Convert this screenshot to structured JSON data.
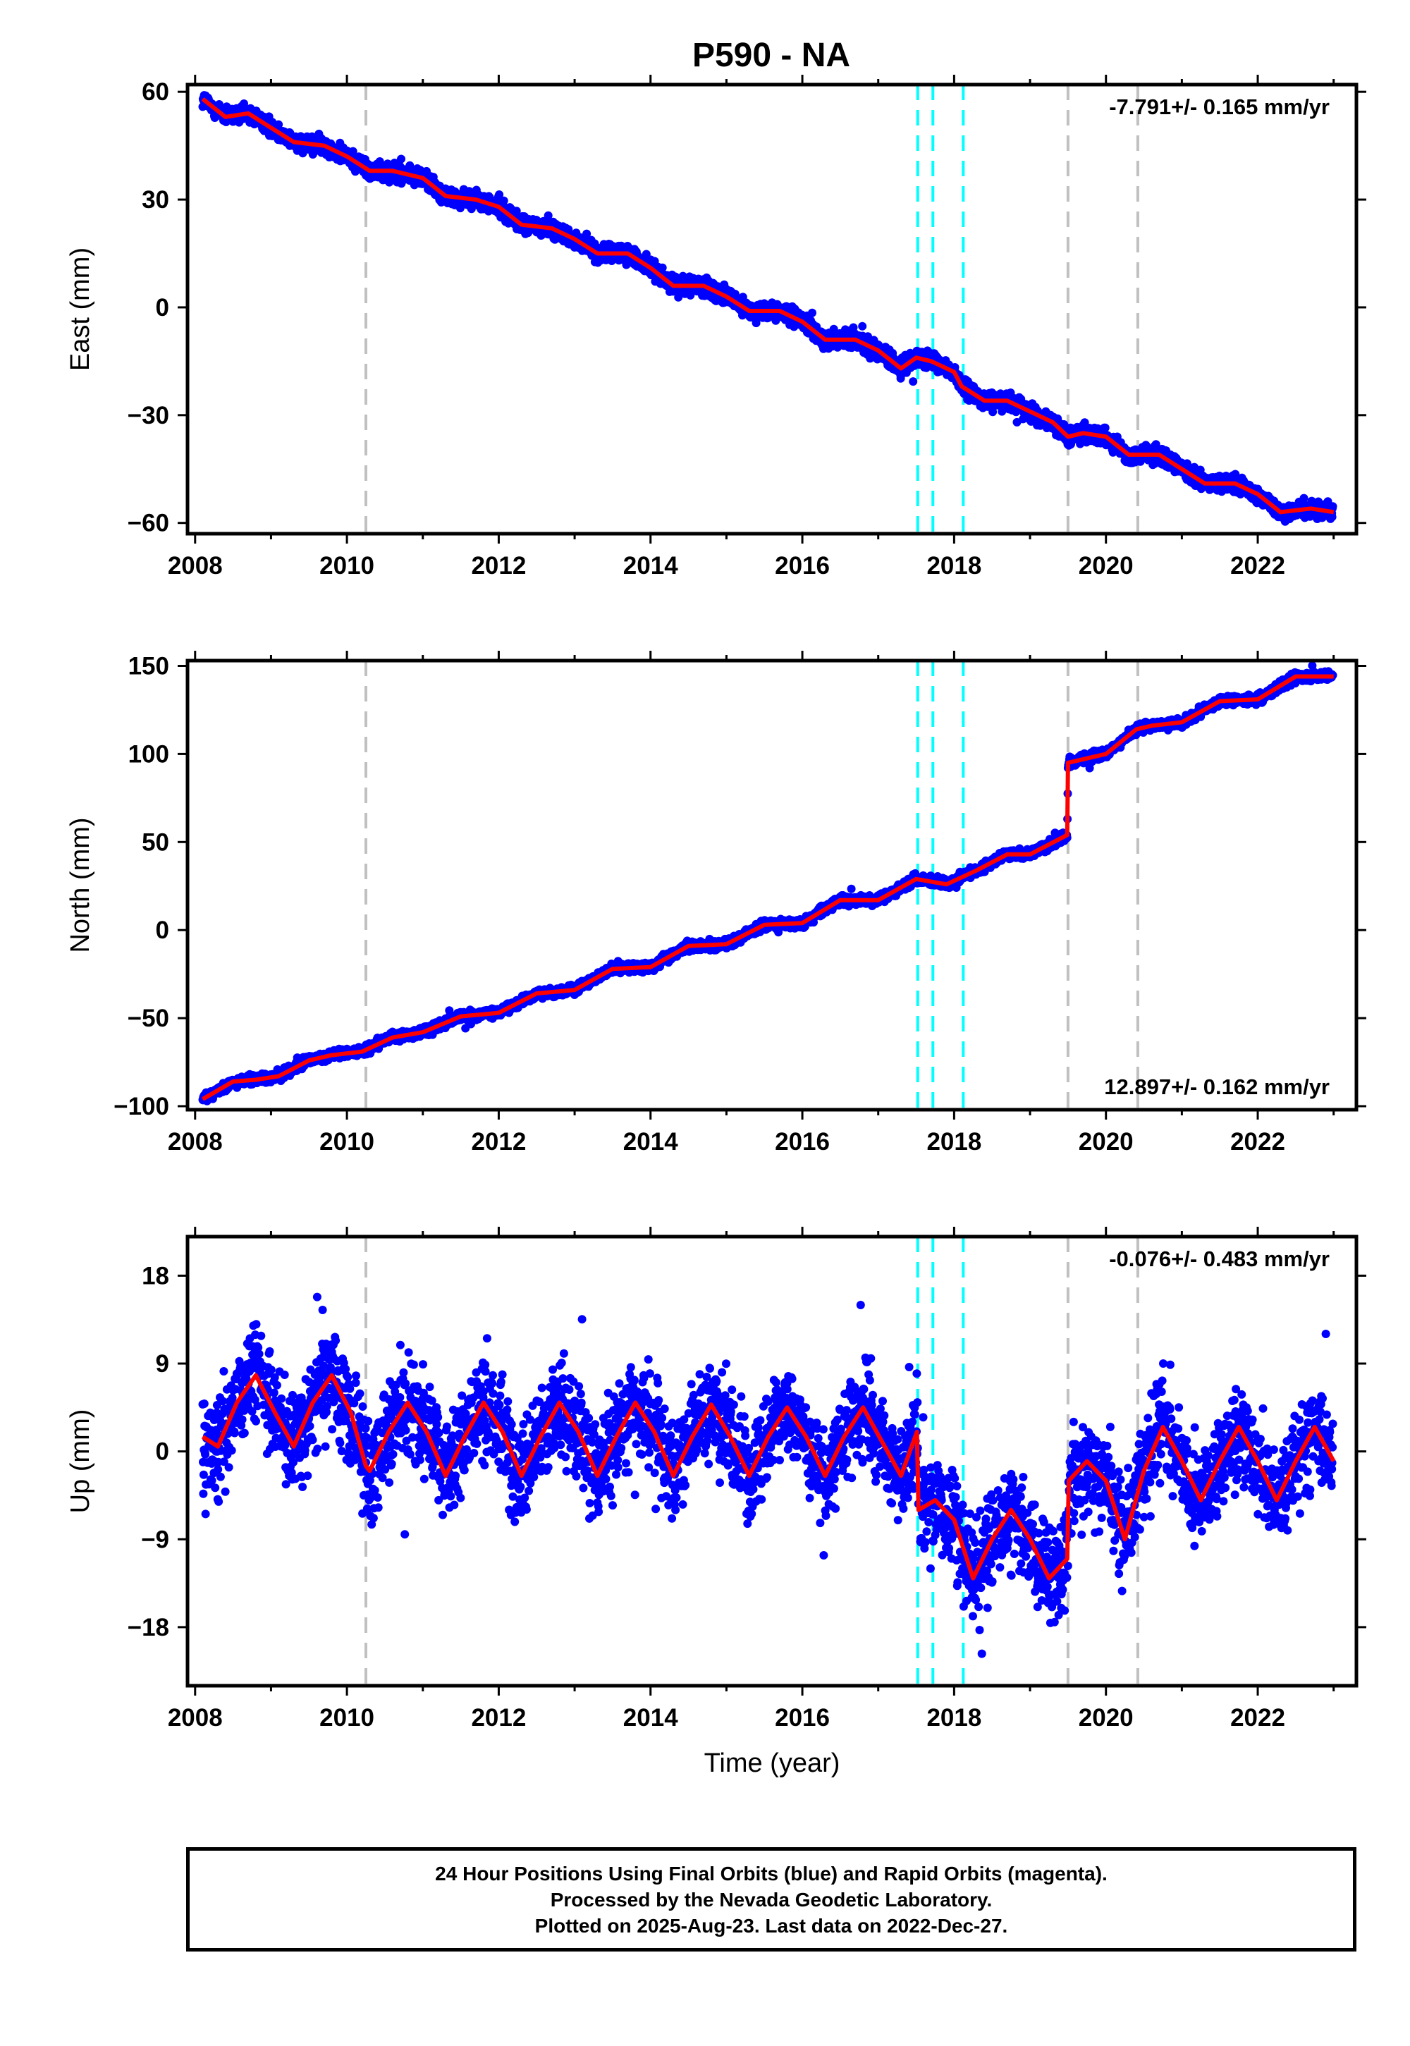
{
  "title": "P590 - NA",
  "colors": {
    "data": "#0000ff",
    "model": "#ff0000",
    "event_cyan": "#00ffff",
    "event_gray": "#c0c0c0",
    "frame": "#000000"
  },
  "chart_data": [
    {
      "type": "scatter",
      "name": "east",
      "ylabel": "East (mm)",
      "xlabel": "",
      "xlim": [
        2007.9,
        2023.3
      ],
      "ylim": [
        -63,
        62
      ],
      "xticks": [
        2008,
        2010,
        2012,
        2014,
        2016,
        2018,
        2020,
        2022
      ],
      "yticks": [
        -60,
        -30,
        0,
        30,
        60
      ],
      "rate_label": "-7.791+/- 0.165 mm/yr",
      "rate_position": "top-right",
      "events_cyan": [
        2017.52,
        2017.72,
        2018.12
      ],
      "events_gray": [
        2010.25,
        2019.5,
        2020.42
      ],
      "model_series": {
        "name": "model",
        "x": [
          2008.1,
          2008.4,
          2008.7,
          2009.0,
          2009.3,
          2009.7,
          2010.0,
          2010.3,
          2010.6,
          2011.0,
          2011.3,
          2011.7,
          2012.0,
          2012.3,
          2012.7,
          2013.0,
          2013.3,
          2013.7,
          2014.0,
          2014.3,
          2014.7,
          2015.0,
          2015.3,
          2015.7,
          2016.0,
          2016.3,
          2016.7,
          2017.0,
          2017.3,
          2017.5,
          2017.7,
          2018.0,
          2018.1,
          2018.4,
          2018.7,
          2019.0,
          2019.3,
          2019.5,
          2019.7,
          2020.0,
          2020.3,
          2020.7,
          2021.0,
          2021.3,
          2021.7,
          2022.0,
          2022.3,
          2022.7,
          2023.0
        ],
        "y": [
          58,
          53,
          54,
          50,
          46,
          45,
          42,
          38,
          38,
          36,
          31,
          30,
          28,
          23,
          22,
          19,
          15,
          15,
          11,
          6,
          6,
          3,
          -1,
          -1,
          -4,
          -9,
          -9,
          -12,
          -17,
          -14,
          -15,
          -18,
          -22,
          -26,
          -26,
          -29,
          -32,
          -36,
          -35,
          -36,
          -41,
          -41,
          -45,
          -49,
          -49,
          -52,
          -57,
          -56,
          -57
        ]
      },
      "data_series": {
        "name": "daily positions",
        "noise": 1.8
      }
    },
    {
      "type": "scatter",
      "name": "north",
      "ylabel": "North (mm)",
      "xlabel": "",
      "xlim": [
        2007.9,
        2023.3
      ],
      "ylim": [
        -102,
        153
      ],
      "xticks": [
        2008,
        2010,
        2012,
        2014,
        2016,
        2018,
        2020,
        2022
      ],
      "yticks": [
        -100,
        -50,
        0,
        50,
        100,
        150
      ],
      "rate_label": "12.897+/- 0.162 mm/yr",
      "rate_position": "bottom-right",
      "events_cyan": [
        2017.52,
        2017.72,
        2018.12
      ],
      "events_gray": [
        2010.25,
        2019.5,
        2020.42
      ],
      "model_series": {
        "name": "model",
        "x": [
          2008.1,
          2008.5,
          2008.8,
          2009.1,
          2009.5,
          2009.8,
          2010.2,
          2010.6,
          2011.0,
          2011.5,
          2012.0,
          2012.5,
          2013.0,
          2013.5,
          2014.0,
          2014.5,
          2015.0,
          2015.5,
          2016.0,
          2016.5,
          2017.0,
          2017.5,
          2017.9,
          2018.3,
          2018.7,
          2019.0,
          2019.49,
          2019.5,
          2019.7,
          2020.0,
          2020.4,
          2020.6,
          2021.0,
          2021.5,
          2022.0,
          2022.5,
          2023.0
        ],
        "y": [
          -96,
          -86,
          -85,
          -83,
          -74,
          -71,
          -69,
          -61,
          -58,
          -49,
          -47,
          -36,
          -34,
          -22,
          -21,
          -9,
          -8,
          3,
          4,
          17,
          17,
          29,
          26,
          34,
          43,
          43,
          54,
          95,
          97,
          100,
          114,
          116,
          118,
          130,
          131,
          144,
          144
        ]
      },
      "data_series": {
        "name": "daily positions",
        "noise": 2.0
      }
    },
    {
      "type": "scatter",
      "name": "up",
      "ylabel": "Up (mm)",
      "xlabel": "Time (year)",
      "xlim": [
        2007.9,
        2023.3
      ],
      "ylim": [
        -24,
        22
      ],
      "xticks": [
        2008,
        2010,
        2012,
        2014,
        2016,
        2018,
        2020,
        2022
      ],
      "yticks": [
        -18,
        -9,
        0,
        9,
        18
      ],
      "rate_label": "-0.076+/- 0.483 mm/yr",
      "rate_position": "top-right",
      "events_cyan": [
        2017.52,
        2017.72,
        2018.12
      ],
      "events_gray": [
        2010.25,
        2019.5,
        2020.42
      ],
      "model_series": {
        "name": "model",
        "x": [
          2008.1,
          2008.3,
          2008.55,
          2008.8,
          2009.05,
          2009.3,
          2009.55,
          2009.8,
          2010.05,
          2010.25,
          2010.3,
          2010.55,
          2010.8,
          2011.05,
          2011.3,
          2011.55,
          2011.8,
          2012.05,
          2012.3,
          2012.55,
          2012.8,
          2013.05,
          2013.3,
          2013.55,
          2013.8,
          2014.05,
          2014.3,
          2014.55,
          2014.8,
          2015.05,
          2015.3,
          2015.55,
          2015.8,
          2016.05,
          2016.3,
          2016.55,
          2016.8,
          2017.05,
          2017.3,
          2017.51,
          2017.53,
          2017.75,
          2018.0,
          2018.25,
          2018.5,
          2018.75,
          2019.0,
          2019.25,
          2019.49,
          2019.51,
          2019.75,
          2020.0,
          2020.25,
          2020.5,
          2020.75,
          2021.0,
          2021.25,
          2021.5,
          2021.75,
          2022.0,
          2022.25,
          2022.5,
          2022.75,
          2023.0
        ],
        "y": [
          1.5,
          0.5,
          5,
          7.8,
          4,
          0.5,
          5,
          7.8,
          4,
          -1.5,
          -2,
          2,
          5,
          2,
          -2.5,
          1.5,
          5,
          2,
          -2.5,
          1.5,
          5,
          2,
          -2.5,
          1.5,
          5,
          2,
          -2.5,
          1.5,
          4.8,
          1.5,
          -2.5,
          1.5,
          4.5,
          1.5,
          -2.5,
          1.5,
          4.5,
          1,
          -2.5,
          2,
          -6,
          -5,
          -7,
          -13,
          -9,
          -6,
          -9,
          -13,
          -11,
          -3,
          -1,
          -3,
          -9,
          -2,
          2.5,
          -1,
          -5,
          -1,
          2.5,
          -1,
          -5,
          -1,
          2.5,
          -1
        ]
      },
      "data_series": {
        "name": "daily positions",
        "noise": 3.8
      }
    }
  ],
  "footer": {
    "line1": "24 Hour Positions Using Final Orbits (blue) and Rapid Orbits (magenta).",
    "line2": "Processed by the Nevada Geodetic Laboratory.",
    "line3": "Plotted on 2025-Aug-23. Last data on 2022-Dec-27."
  }
}
